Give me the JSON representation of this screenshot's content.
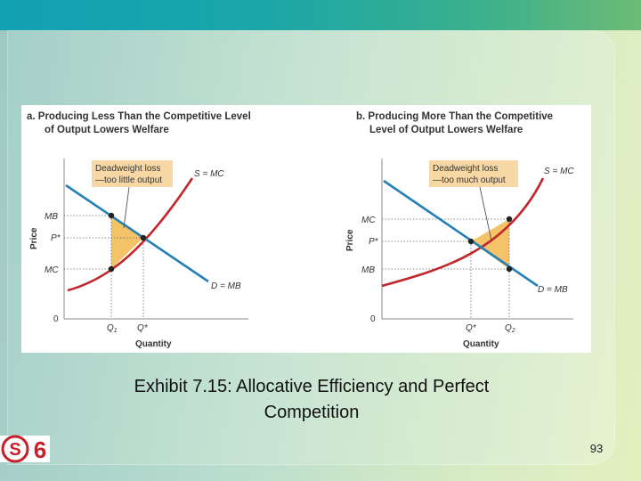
{
  "slide": {
    "caption_line1": "Exhibit 7.15: Allocative Efficiency and Perfect",
    "caption_line2": "Competition",
    "page_number": "93",
    "logo_letter": "S",
    "logo_number": "6",
    "colors": {
      "supply": "#c0272d",
      "demand": "#2680b8",
      "dwl_fill": "#f4c267",
      "note_box": "#f7d8a4"
    }
  },
  "panel_a": {
    "title_line1": "a. Producing Less Than the Competitive Level",
    "title_line2": "of Output Lowers Welfare",
    "y_axis_label": "Price",
    "x_axis_label": "Quantity",
    "origin": "0",
    "y_ticks": {
      "top": "MB",
      "mid": "P*",
      "bottom": "MC"
    },
    "x_ticks": {
      "q1": "Q",
      "q1_sub": "1",
      "qstar": "Q*"
    },
    "supply_label": "S = MC",
    "demand_label": "D = MB",
    "note_line1": "Deadweight loss",
    "note_line2": "—too little output"
  },
  "panel_b": {
    "title_line1": "b. Producing More Than the Competitive",
    "title_line2": "Level of Output Lowers Welfare",
    "y_axis_label": "Price",
    "x_axis_label": "Quantity",
    "origin": "0",
    "y_ticks": {
      "top": "MC",
      "mid": "P*",
      "bottom": "MB"
    },
    "x_ticks": {
      "qstar": "Q*",
      "q2": "Q",
      "q2_sub": "2"
    },
    "supply_label": "S = MC",
    "demand_label": "D = MB",
    "note_line1": "Deadweight loss",
    "note_line2": "—too much output"
  }
}
